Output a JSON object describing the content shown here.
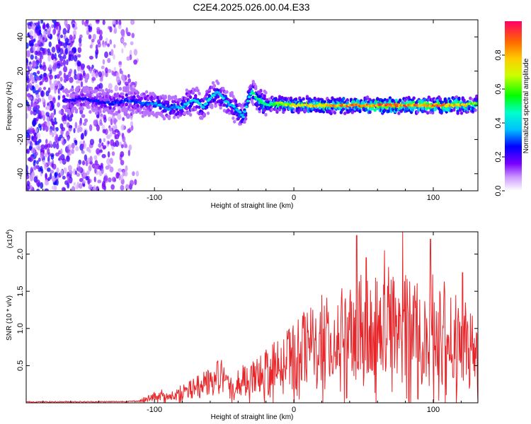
{
  "title": "C2E4.2025.026.00.04.E33",
  "chart_data": [
    {
      "type": "heatmap",
      "xlabel": "Height of straight line (km)",
      "ylabel": "Frequency (Hz)",
      "xlim": [
        -192,
        132
      ],
      "ylim": [
        -50,
        50
      ],
      "xticks": [
        -100,
        0,
        100
      ],
      "xticklabels": [
        "-100",
        "0",
        "100"
      ],
      "yticks": [
        -40,
        -20,
        0,
        20,
        40
      ],
      "yticklabels": [
        "-40",
        "-20",
        "0",
        "20",
        "40"
      ],
      "colorbar": {
        "label": "Normalized spectral amplitude",
        "range": [
          0,
          1
        ],
        "ticks": [
          0.0,
          0.2,
          0.4,
          0.6,
          0.8
        ],
        "ticklabels": [
          "0.0",
          "0.2",
          "0.4",
          "0.6",
          "0.8"
        ],
        "colormap": "rainbow"
      },
      "description_data": {
        "noise_region_x": [
          -192,
          -112
        ],
        "band_center_hz": [
          [
            -160,
            3
          ],
          [
            -150,
            4
          ],
          [
            -140,
            2
          ],
          [
            -130,
            1
          ],
          [
            -120,
            3
          ],
          [
            -110,
            1
          ],
          [
            -100,
            1
          ],
          [
            -90,
            -2
          ],
          [
            -80,
            -1
          ],
          [
            -75,
            2
          ],
          [
            -70,
            3
          ],
          [
            -65,
            -1
          ],
          [
            -60,
            4
          ],
          [
            -55,
            8
          ],
          [
            -50,
            3
          ],
          [
            -45,
            0
          ],
          [
            -40,
            -3
          ],
          [
            -36,
            -7
          ],
          [
            -33,
            3
          ],
          [
            -30,
            8
          ],
          [
            -25,
            3
          ],
          [
            -20,
            0
          ],
          [
            -10,
            1
          ],
          [
            0,
            0
          ],
          [
            20,
            0
          ],
          [
            40,
            0
          ],
          [
            60,
            0
          ],
          [
            80,
            0
          ],
          [
            100,
            0
          ],
          [
            120,
            0
          ],
          [
            132,
            1
          ]
        ],
        "band_peak_amplitude": [
          [
            -160,
            0.25
          ],
          [
            -120,
            0.3
          ],
          [
            -100,
            0.35
          ],
          [
            -80,
            0.4
          ],
          [
            -60,
            0.45
          ],
          [
            -40,
            0.4
          ],
          [
            -30,
            0.5
          ],
          [
            -15,
            0.6
          ],
          [
            0,
            0.75
          ],
          [
            20,
            0.85
          ],
          [
            40,
            0.9
          ],
          [
            60,
            0.95
          ],
          [
            80,
            0.95
          ],
          [
            100,
            0.92
          ],
          [
            120,
            0.85
          ],
          [
            132,
            0.6
          ]
        ]
      }
    },
    {
      "type": "line",
      "xlabel": "Height of straight line (km)",
      "ylabel": "SNR (10 * v/v)",
      "yscale_label": "(x10",
      "yscale_exponent": "4",
      "xlim": [
        -192,
        132
      ],
      "ylim": [
        0,
        2.3
      ],
      "xticks": [
        -100,
        0,
        100
      ],
      "xticklabels": [
        "-100",
        "0",
        "100"
      ],
      "yticks": [
        0.5,
        1.0,
        1.5,
        2.0
      ],
      "yticklabels": [
        "0.5",
        "1.0",
        "1.5",
        "2.0"
      ],
      "color": "#e8262a",
      "series": [
        {
          "x": [
            -192,
            -180,
            -170,
            -160,
            -150,
            -140,
            -130,
            -120,
            -110,
            -105,
            -100,
            -95,
            -90,
            -85,
            -80,
            -75,
            -70,
            -65,
            -60,
            -55,
            -50,
            -45,
            -40,
            -35,
            -30,
            -25,
            -20,
            -15,
            -10,
            -5,
            0,
            5,
            10,
            15,
            20,
            25,
            30,
            35,
            40,
            45,
            50,
            55,
            60,
            65,
            70,
            75,
            80,
            85,
            90,
            95,
            100,
            105,
            110,
            115,
            120,
            125,
            130,
            132
          ],
          "y": [
            0.02,
            0.02,
            0.02,
            0.03,
            0.02,
            0.03,
            0.03,
            0.04,
            0.06,
            0.08,
            0.12,
            0.15,
            0.12,
            0.18,
            0.22,
            0.28,
            0.3,
            0.35,
            0.4,
            0.55,
            0.45,
            0.35,
            0.4,
            0.45,
            0.55,
            0.6,
            0.65,
            0.7,
            0.75,
            0.85,
            0.9,
            1.0,
            1.05,
            1.1,
            1.15,
            1.2,
            1.25,
            1.3,
            1.35,
            1.5,
            1.4,
            1.5,
            1.45,
            1.55,
            1.6,
            1.5,
            1.55,
            1.45,
            1.5,
            1.4,
            1.45,
            1.4,
            1.35,
            1.3,
            1.2,
            1.1,
            1.0,
            0.9
          ]
        }
      ],
      "peaks": [
        [
          -55,
          0.55
        ],
        [
          20,
          1.45
        ],
        [
          45,
          2.25
        ],
        [
          52,
          1.95
        ],
        [
          65,
          2.05
        ],
        [
          78,
          2.3
        ],
        [
          98,
          2.2
        ],
        [
          121,
          1.75
        ]
      ]
    }
  ]
}
